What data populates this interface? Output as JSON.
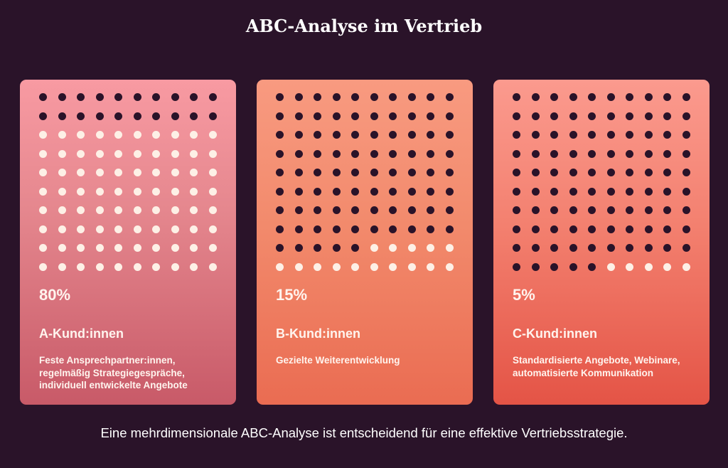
{
  "title": "ABC-Analyse im Vertrieb",
  "colors": {
    "background": "#2a1329",
    "dot_dark": "#2a1329",
    "dot_light": "#fdf0e6",
    "card_a": "#e5878e",
    "card_b": "#f28a6c",
    "card_c": "#f3806f"
  },
  "dot_grid": {
    "columns": 10,
    "rows": 10
  },
  "cards": [
    {
      "percent": "80%",
      "dark_dots": 20,
      "name": "A-Kund:innen",
      "description": "Feste Ansprechpartner:innen, regelmäßig Strategiegespräche, individuell entwickelte Angebote"
    },
    {
      "percent": "15%",
      "dark_dots": 85,
      "name": "B-Kund:innen",
      "description": "Gezielte Weiterentwicklung"
    },
    {
      "percent": "5%",
      "dark_dots": 95,
      "name": "C-Kund:innen",
      "description": "Standardisierte Angebote, Webinare, automatisierte Kommunikation"
    }
  ],
  "footer": "Eine mehrdimensionale ABC-Analyse ist entscheidend für eine effektive Vertriebsstrategie."
}
